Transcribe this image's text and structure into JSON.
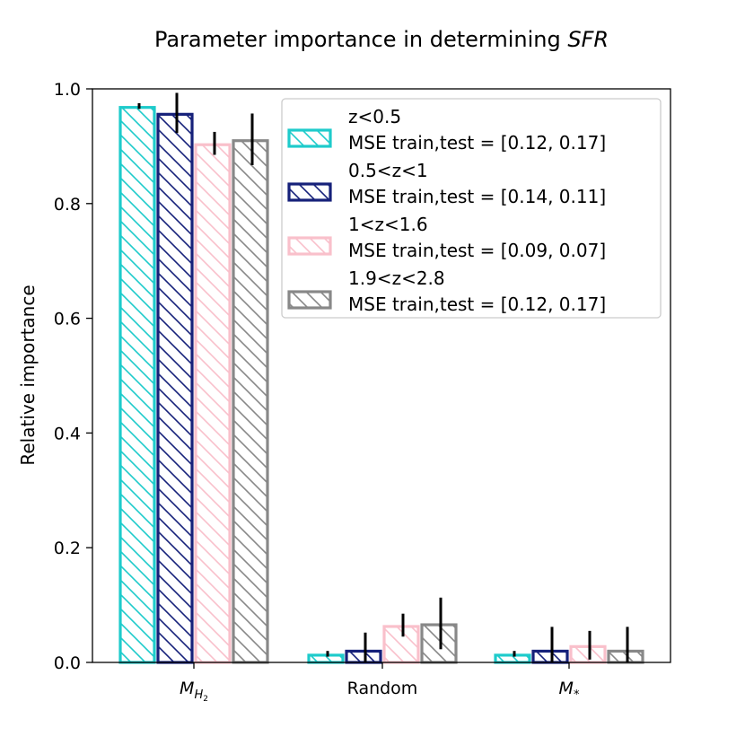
{
  "chart_data": {
    "type": "bar",
    "title": "Parameter importance in determining ",
    "title_italic": "SFR",
    "xlabel": "",
    "ylabel": "Relative importance",
    "ylim": [
      0,
      1.0
    ],
    "yticks": [
      "0.0",
      "0.2",
      "0.4",
      "0.6",
      "0.8",
      "1.0"
    ],
    "categories": [
      "M_H2",
      "Random",
      "M_*"
    ],
    "category_labels": [
      {
        "main": "M",
        "sub": "H",
        "subsub": "2"
      },
      {
        "main": "Random"
      },
      {
        "main": "M",
        "sub": "*"
      }
    ],
    "series": [
      {
        "name": "z<0.5",
        "legend_line2": " MSE train,test = [0.12, 0.17]",
        "color": "#1ecbcb",
        "values": [
          0.97,
          0.015,
          0.015
        ],
        "errors": [
          0.005,
          0.005,
          0.005
        ]
      },
      {
        "name": "0.5<z<1",
        "legend_line2": " MSE train,test = [0.14, 0.11]",
        "color": "#16217a",
        "values": [
          0.958,
          0.022,
          0.022
        ],
        "errors": [
          0.035,
          0.03,
          0.04
        ]
      },
      {
        "name": "1<z<1.6",
        "legend_line2": " MSE train,test = [0.09, 0.07]",
        "color": "#f9c0cb",
        "values": [
          0.905,
          0.065,
          0.03
        ],
        "errors": [
          0.02,
          0.02,
          0.025
        ]
      },
      {
        "name": "1.9<z<2.8",
        "legend_line2": " MSE train,test = [0.12, 0.17]",
        "color": "#888888",
        "values": [
          0.912,
          0.068,
          0.022
        ],
        "errors": [
          0.045,
          0.045,
          0.04
        ]
      }
    ],
    "legend_position": "top-right",
    "hatch": "diagonal"
  }
}
